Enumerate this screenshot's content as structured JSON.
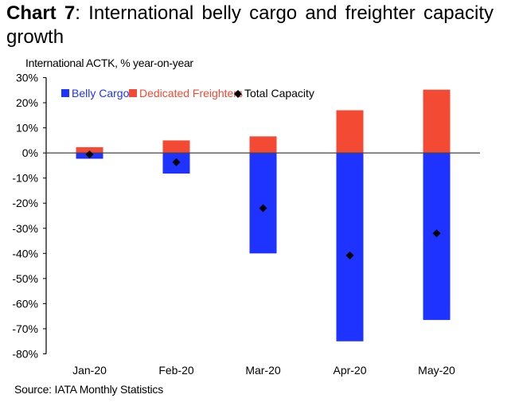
{
  "title_bold": "Chart 7",
  "title_rest": ": International belly cargo and freighter capacity growth",
  "colors": {
    "belly": "#1e33ff",
    "freighter": "#f24a33",
    "total": "#000000"
  },
  "chart_data": {
    "type": "bar",
    "stacked": true,
    "title": "Chart 7: International belly cargo and freighter capacity growth",
    "ylabel": "International ACTK, % year-on-year",
    "xlabel": "",
    "ylim": [
      -80,
      30
    ],
    "yticks": [
      "30%",
      "20%",
      "10%",
      "0%",
      "-10%",
      "-20%",
      "-30%",
      "-40%",
      "-50%",
      "-60%",
      "-70%",
      "-80%"
    ],
    "categories": [
      "Jan-20",
      "Feb-20",
      "Mar-20",
      "Apr-20",
      "May-20"
    ],
    "series": [
      {
        "name": "Belly Cargo",
        "kind": "bar",
        "values": [
          -2.3,
          -8.2,
          -40,
          -75,
          -66.5
        ]
      },
      {
        "name": "Dedicated Freighters",
        "kind": "bar",
        "values": [
          2.3,
          5.0,
          6.6,
          17.0,
          25.2
        ]
      },
      {
        "name": "Total Capacity",
        "kind": "marker-diamond",
        "values": [
          -0.6,
          -3.7,
          -22,
          -40.8,
          -32
        ]
      }
    ],
    "legend": "top",
    "grid": false
  },
  "source": "Source: IATA Monthly Statistics"
}
